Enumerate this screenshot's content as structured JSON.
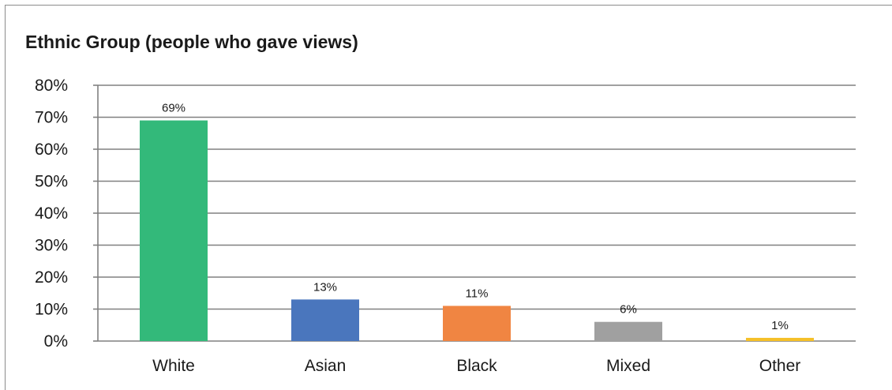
{
  "chart_data": {
    "type": "bar",
    "title": "Ethnic Group (people who gave views)",
    "categories": [
      "White",
      "Asian",
      "Black",
      "Mixed",
      "Other"
    ],
    "values": [
      69,
      13,
      11,
      6,
      1
    ],
    "value_labels": [
      "69%",
      "13%",
      "11%",
      "6%",
      "1%"
    ],
    "ylim": [
      0,
      80
    ],
    "yticks": [
      0,
      10,
      20,
      30,
      40,
      50,
      60,
      70,
      80
    ],
    "ytick_labels": [
      "0%",
      "10%",
      "20%",
      "30%",
      "40%",
      "50%",
      "60%",
      "70%",
      "80%"
    ],
    "grid": true,
    "legend": "none",
    "colors": [
      "#33b97a",
      "#4a76bd",
      "#f08542",
      "#a0a0a0",
      "#f5c028"
    ]
  }
}
